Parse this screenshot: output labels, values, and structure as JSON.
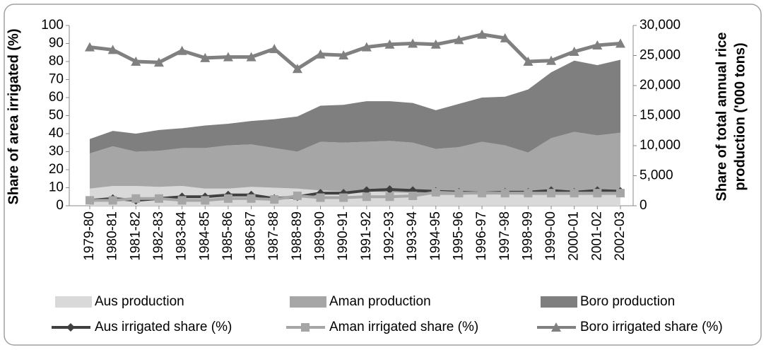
{
  "chart_data": {
    "type": "area",
    "ylabel": "Share of area irrigated (%)",
    "y2label": [
      "Share of total annual rice",
      "production ('000 tons)"
    ],
    "categories": [
      "1979-80",
      "1980-81",
      "1981-82",
      "1982-83",
      "1983-84",
      "1984-85",
      "1985-86",
      "1986-87",
      "1987-88",
      "1988-89",
      "1989-90",
      "1990-91",
      "1991-92",
      "1992-93",
      "1993-94",
      "1994-95",
      "1995-96",
      "1996-97",
      "1997-98",
      "1998-99",
      "1999-00",
      "2000-01",
      "2001-02",
      "2002-03"
    ],
    "ylim": [
      0,
      100
    ],
    "yticks": [
      0,
      10,
      20,
      30,
      40,
      50,
      60,
      70,
      80,
      90,
      100
    ],
    "y2lim": [
      0,
      30000
    ],
    "y2ticks": [
      0,
      {
        "value": 5000,
        "label": "5,000"
      },
      {
        "value": 10000,
        "label": "10,000"
      },
      {
        "value": 15000,
        "label": "15,000"
      },
      {
        "value": 20000,
        "label": "20,000"
      },
      {
        "value": 25000,
        "label": "25,000"
      },
      {
        "value": 30000,
        "label": "30,000"
      }
    ],
    "legend": "bottom",
    "series": [
      {
        "name": "Aus production",
        "type": "area",
        "axis": "y2",
        "color": "#d9d9d9",
        "values": [
          2850,
          3300,
          3300,
          3150,
          3300,
          2850,
          2850,
          3150,
          3000,
          2850,
          2550,
          2400,
          2400,
          2250,
          2100,
          1800,
          1800,
          1950,
          1950,
          1800,
          1800,
          1800,
          1800,
          1800
        ]
      },
      {
        "name": "Aman production",
        "type": "area",
        "axis": "y2",
        "color": "#a6a6a6",
        "values": [
          5850,
          6600,
          5700,
          6000,
          6300,
          6750,
          7200,
          7050,
          6600,
          6150,
          8100,
          8100,
          8250,
          8550,
          8400,
          7650,
          7950,
          8700,
          8100,
          7050,
          9450,
          10500,
          9900,
          10350
        ]
      },
      {
        "name": "Boro production",
        "type": "area",
        "axis": "y2",
        "color": "#7f7f7f",
        "values": [
          2400,
          2550,
          3000,
          3450,
          3300,
          3750,
          3600,
          3900,
          4800,
          5850,
          6000,
          6300,
          6750,
          6600,
          6600,
          6450,
          7200,
          7350,
          8100,
          10500,
          10950,
          11850,
          11700,
          12150
        ]
      },
      {
        "name": "Aus irrigated share (%)",
        "type": "line",
        "marker": "diamond",
        "color": "#404040",
        "values": [
          3,
          4,
          3,
          4,
          5,
          5,
          6,
          6,
          4,
          5,
          7,
          7,
          8.5,
          9,
          8.5,
          8,
          7.5,
          7,
          7.5,
          7.5,
          8.5,
          7.5,
          8.5,
          8
        ]
      },
      {
        "name": "Aman irrigated share (%)",
        "type": "line",
        "marker": "square",
        "color": "#a6a6a6",
        "values": [
          3,
          3,
          4,
          4,
          3,
          3,
          4,
          4,
          3.5,
          5.5,
          4.5,
          4.5,
          5,
          5,
          5.5,
          7.5,
          7,
          7,
          7,
          7,
          7,
          7,
          7,
          7
        ]
      },
      {
        "name": "Boro irrigated share (%)",
        "type": "line",
        "marker": "triangle",
        "color": "#808080",
        "values": [
          88,
          86.5,
          80,
          79.5,
          86,
          82,
          82.5,
          82.5,
          87,
          76,
          84,
          83.5,
          88,
          89.5,
          90,
          89.5,
          92,
          95,
          93,
          80,
          80.5,
          85.5,
          89,
          90
        ]
      }
    ]
  }
}
